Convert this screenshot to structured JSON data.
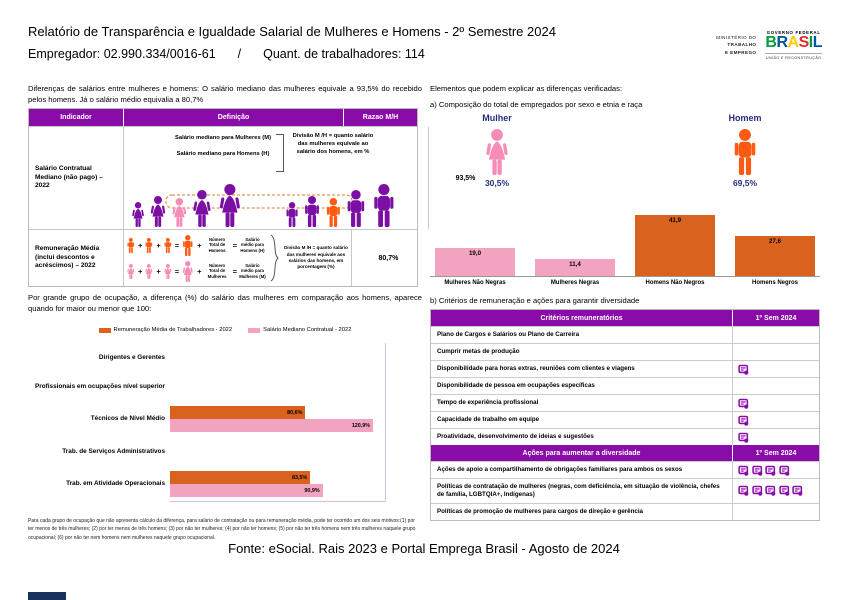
{
  "header": {
    "title": "Relatório de Transparência e Igualdade Salarial de Mulheres e Homens - 2º Semestre 2024",
    "employer": "Empregador: 02.990.334/0016-61",
    "separator": "/",
    "workers": "Quant. de trabalhadores: 114",
    "logo": {
      "ministry_line1": "MINISTÉRIO DO",
      "ministry_line2": "TRABALHO",
      "ministry_line3": "E EMPREGO",
      "gov": "GOVERNO FEDERAL",
      "brand_letters": [
        "B",
        "R",
        "A",
        "S",
        "I",
        "L"
      ],
      "tagline": "UNIÃO E RECONSTRUÇÃO"
    }
  },
  "left": {
    "intro": "Diferenças de salários entre mulheres e homens: O salário mediano das mulheres equivale a 93,5% do recebido pelos homens. Já o salário médio equivalia a 80,7%",
    "table": {
      "headers": [
        "Indicador",
        "Definição",
        "Razao M/H"
      ],
      "rows": [
        {
          "indicator": "Salário Contratual Mediano (não pago) – 2022",
          "labels": [
            "Salário mediano para Mulheres (M)",
            "Salário mediano para Homens (H)"
          ],
          "division": "Divisão M /H = quanto salário das mulheres equivale ao salário dos homens, em %",
          "ratio": "93,5%"
        },
        {
          "indicator": "Remuneração Média (inclui descontos e acréscimos) – 2022",
          "plus": "+",
          "equals": "=",
          "men_total": "Número Total de Homens",
          "men_salary": "Salário médio para Homens (H)",
          "women_total": "Número Total de Mulheres",
          "women_salary": "Salário médio para Mulheres (M)",
          "division": "Divisão M /H = quanto salário das mulheres equivale aos salários das homens, em porcentagem (%)",
          "ratio": "80,7%"
        }
      ]
    },
    "occupation_intro": "Por grande grupo de ocupação, a diferença (%) do salário das mulheres em comparação aos homens, aparece quando for maior ou menor que 100:",
    "footnote": "Para cada grupo de ocupação que não apresenta cálculo da diferença, para salário de contratação ou para remuneração média, pode ter ocorrido um dos seis motivos:(1) por ter menos de três mulheres; (2) por ter menos de três homens; (3) por não ter mulheres; (4) por não ter homens; (5) por não ter três homens nem três mulheres naquele grupo ocupacional; (6) por não ter nem homens nem mulheres naquele grupo ocupacional."
  },
  "right": {
    "elements_title": "Elementos que podem explicar as diferenças verificadas:",
    "composition_title": "a) Composição do total de empregados por sexo e etnia e raça",
    "woman_label": "Mulher",
    "woman_pct": "30,5%",
    "man_label": "Homem",
    "man_pct": "69,5%",
    "criteria_title": "b) Critérios de remuneração e ações para garantir diversidade",
    "criteria_table": {
      "header": "Critérios remuneratórios",
      "period": "1º Sem 2024",
      "rows": [
        {
          "label": "Plano de Cargos e Salários ou Plano de Carreira",
          "icons": 0
        },
        {
          "label": "Cumprir metas de produção",
          "icons": 0
        },
        {
          "label": "Disponibilidade para horas extras, reuniões com clientes e viagens",
          "icons": 1
        },
        {
          "label": "Disponibilidade de pessoa em ocupações específicas",
          "icons": 0
        },
        {
          "label": "Tempo de experiência profissional",
          "icons": 1
        },
        {
          "label": "Capacidade de trabalho em equipe",
          "icons": 1
        },
        {
          "label": "Proatividade, desenvolvimento de ideias e sugestões",
          "icons": 1
        }
      ]
    },
    "actions_table": {
      "header": "Ações para aumentar a diversidade",
      "period": "1º Sem 2024",
      "rows": [
        {
          "label": "Ações de apoio a compartilhamento de obrigações familiares para ambos os sexos",
          "icons": 4
        },
        {
          "label": "Políticas de contratação de mulheres (negras, com deficiência, em situação de violência, chefes de família, LGBTQIA+, Indígenas)",
          "icons": 5
        },
        {
          "label": "Políticas de promoção de mulheres para cargos de direção e gerência",
          "icons": 0
        }
      ]
    }
  },
  "footer": "Fonte: eSocial. Rais 2023 e Portal Emprega Brasil - Agosto de 2024",
  "colors": {
    "purple": "#8A0CA8",
    "figure_purple": "#7B0FA3",
    "pink": "#F2A3C0",
    "pink_figure": "#F78CB6",
    "orange_bar": "#D9621F",
    "orange_icon": "#FF5A0F",
    "navy": "#262E7D"
  },
  "chart_data": [
    {
      "type": "bar",
      "title": "Composição do total de empregados por sexo e etnia e raça",
      "categories": [
        "Mulheres Não Negras",
        "Mulheres Negras",
        "Homens Não Negros",
        "Homens Negros"
      ],
      "values": [
        19.0,
        11.4,
        41.9,
        27.6
      ],
      "colors": [
        "#F2A3C0",
        "#F2A3C0",
        "#D9621F",
        "#D9621F"
      ],
      "ylim": [
        0,
        45
      ],
      "grid": false,
      "value_labels": [
        "19,0",
        "11,4",
        "41,9",
        "27,6"
      ]
    },
    {
      "type": "bar-horizontal",
      "title": "Diferença (%) do salário das mulheres em comparação aos homens, por grande grupo de ocupação",
      "categories": [
        "Dirigentes e Gerentes",
        "Profissionais em ocupações nível superior",
        "Técnicos de Nível Médio",
        "Trab. de Serviços Administrativos",
        "Trab. em Atividade Operacionais"
      ],
      "series": [
        {
          "name": "Remuneração Média de Trabalhadores - 2022",
          "color": "#D9621F",
          "values": [
            null,
            null,
            80.6,
            null,
            83.5
          ]
        },
        {
          "name": "Salário Mediano Contratual - 2022",
          "color": "#F2A3C0",
          "values": [
            null,
            null,
            120.9,
            null,
            90.9
          ]
        }
      ],
      "xlim": [
        0,
        130
      ],
      "legend_position": "top",
      "value_labels": [
        [
          "80,6%",
          "83,5%"
        ],
        [
          "120,9%",
          "90,9%"
        ]
      ]
    }
  ]
}
